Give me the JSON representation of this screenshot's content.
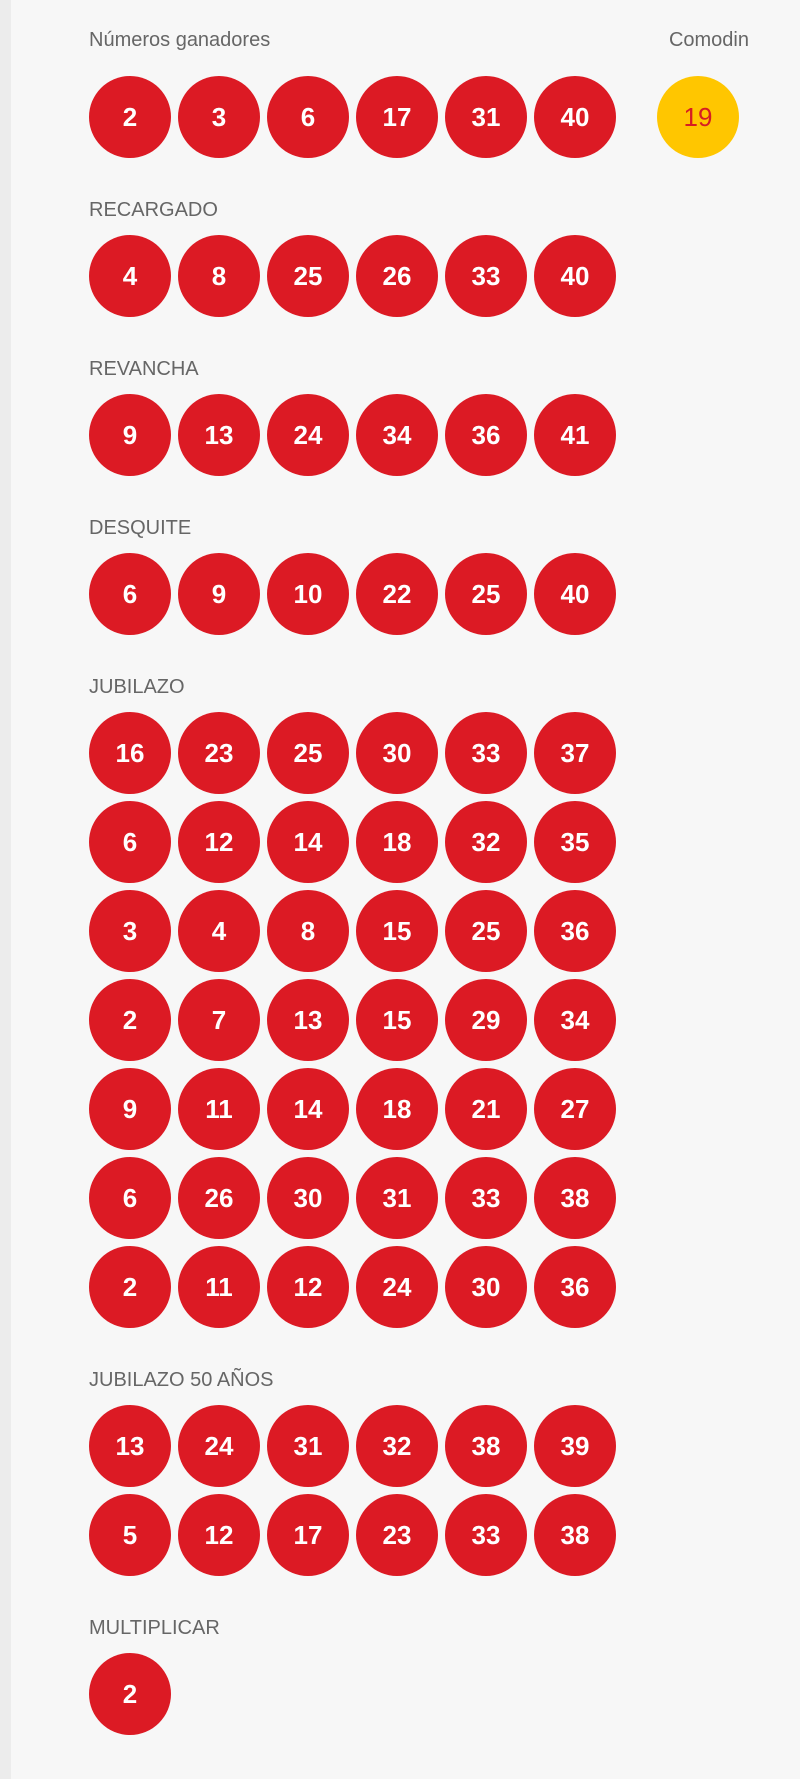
{
  "main": {
    "title": "Números ganadores",
    "comodin_label": "Comodin",
    "numbers": [
      "2",
      "3",
      "6",
      "17",
      "31",
      "40"
    ],
    "comodin": "19",
    "sections": [
      {
        "label": "RECARGADO",
        "rows": [
          [
            "4",
            "8",
            "25",
            "26",
            "33",
            "40"
          ]
        ]
      },
      {
        "label": "REVANCHA",
        "rows": [
          [
            "9",
            "13",
            "24",
            "34",
            "36",
            "41"
          ]
        ]
      },
      {
        "label": "DESQUITE",
        "rows": [
          [
            "6",
            "9",
            "10",
            "22",
            "25",
            "40"
          ]
        ]
      },
      {
        "label": "JUBILAZO",
        "rows": [
          [
            "16",
            "23",
            "25",
            "30",
            "33",
            "37"
          ],
          [
            "6",
            "12",
            "14",
            "18",
            "32",
            "35"
          ],
          [
            "3",
            "4",
            "8",
            "15",
            "25",
            "36"
          ],
          [
            "2",
            "7",
            "13",
            "15",
            "29",
            "34"
          ],
          [
            "9",
            "11",
            "14",
            "18",
            "21",
            "27"
          ],
          [
            "6",
            "26",
            "30",
            "31",
            "33",
            "38"
          ],
          [
            "2",
            "11",
            "12",
            "24",
            "30",
            "36"
          ]
        ]
      },
      {
        "label": "JUBILAZO 50 AÑOS",
        "rows": [
          [
            "13",
            "24",
            "31",
            "32",
            "38",
            "39"
          ],
          [
            "5",
            "12",
            "17",
            "23",
            "33",
            "38"
          ]
        ]
      },
      {
        "label": "MULTIPLICAR",
        "rows": [
          [
            "2"
          ]
        ]
      }
    ],
    "colors": {
      "ball": "#dc1a24",
      "comodin_ball": "#ffc600",
      "background": "#f7f7f7"
    }
  }
}
